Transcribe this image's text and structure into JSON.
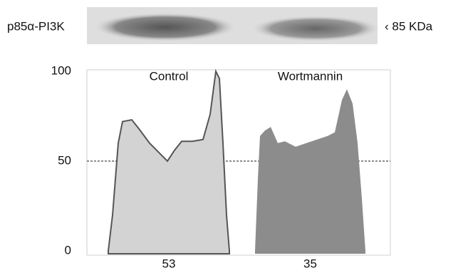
{
  "chart_data": {
    "type": "area",
    "annotations": {
      "blot_label": "p85α-PI3K",
      "size_marker": "‹ 85 KDa"
    },
    "xlim": [
      0,
      426
    ],
    "ylim": [
      0,
      100
    ],
    "yticks": [
      0,
      50,
      100
    ],
    "reference_line": 50,
    "series": [
      {
        "name": "Control",
        "color": "#d3d3d3",
        "outline": "#555555",
        "summary": 53,
        "x": [
          30,
          36,
          40,
          44,
          50,
          63,
          73,
          88,
          103,
          113,
          123,
          133,
          148,
          163,
          173,
          181,
          186,
          191,
          196,
          200
        ],
        "values": [
          0,
          20,
          40,
          60,
          72,
          73,
          68,
          60,
          54,
          50,
          56,
          61,
          61,
          62,
          76,
          100,
          96,
          60,
          20,
          0
        ]
      },
      {
        "name": "Wortmannin",
        "color": "#8c8c8c",
        "summary": 35,
        "x": [
          236,
          240,
          243,
          250,
          258,
          268,
          278,
          293,
          308,
          323,
          338,
          348,
          358,
          365,
          373,
          380,
          386,
          391
        ],
        "values": [
          0,
          40,
          64,
          67,
          69,
          60,
          61,
          58,
          60,
          62,
          64,
          66,
          84,
          90,
          82,
          60,
          29,
          0
        ]
      }
    ]
  }
}
